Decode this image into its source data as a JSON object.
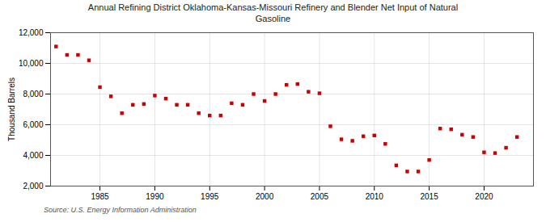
{
  "chart_data": {
    "type": "scatter",
    "title": "Annual Refining District Oklahoma-Kansas-Missouri Refinery and Blender Net Input of Natural\nGasoline",
    "ylabel": "Thousand Barrels",
    "source": "Source: U.S. Energy Information Administration",
    "x": [
      1981,
      1982,
      1983,
      1984,
      1985,
      1986,
      1987,
      1988,
      1989,
      1990,
      1991,
      1992,
      1993,
      1994,
      1995,
      1996,
      1997,
      1998,
      1999,
      2000,
      2001,
      2002,
      2003,
      2004,
      2005,
      2006,
      2007,
      2008,
      2009,
      2010,
      2011,
      2012,
      2013,
      2014,
      2015,
      2016,
      2017,
      2018,
      2019,
      2020,
      2021,
      2022,
      2023
    ],
    "values": [
      11100,
      10550,
      10550,
      10200,
      8450,
      7850,
      6750,
      7300,
      7350,
      7900,
      7700,
      7300,
      7300,
      6750,
      6600,
      6600,
      7400,
      7300,
      8000,
      7550,
      8000,
      8600,
      8650,
      8150,
      8050,
      5900,
      5050,
      4950,
      5250,
      5300,
      4750,
      3350,
      2950,
      2950,
      3700,
      5750,
      5700,
      5350,
      5200,
      4200,
      4150,
      4500,
      5200
    ],
    "color": "#cc0000",
    "marker": "square",
    "xlim": [
      1980.5,
      2024.5
    ],
    "xticks": [
      1985,
      1990,
      1995,
      2000,
      2005,
      2010,
      2015,
      2020
    ],
    "ylim": [
      2000,
      12000
    ],
    "yticks": [
      {
        "value": 2000,
        "label": "2,000"
      },
      {
        "value": 4000,
        "label": "4,000"
      },
      {
        "value": 6000,
        "label": "6,000"
      },
      {
        "value": 8000,
        "label": "8,000"
      },
      {
        "value": 10000,
        "label": "10,000"
      },
      {
        "value": 12000,
        "label": "12,000"
      }
    ],
    "grid": true
  }
}
